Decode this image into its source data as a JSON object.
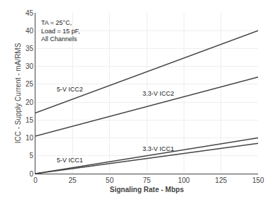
{
  "chart_data": {
    "type": "line",
    "xlabel": "Signaling Rate - Mbps",
    "ylabel": "ICC - Supply Current - mA/RMS",
    "annotation": "TA = 25°C,\nLoad = 15 pF,\nAll Channels",
    "x": [
      0,
      150
    ],
    "series": [
      {
        "name": "5-V ICC2",
        "color": "#444444",
        "values": [
          17.0,
          40.0
        ]
      },
      {
        "name": "3.3-V ICC2",
        "color": "#444444",
        "values": [
          10.5,
          27.0
        ]
      },
      {
        "name": "5-V ICC1",
        "color": "#444444",
        "values": [
          0.0,
          10.0
        ]
      },
      {
        "name": "3.3-V ICC1",
        "color": "#444444",
        "values": [
          0.0,
          8.5
        ]
      }
    ],
    "xlim": [
      0,
      150
    ],
    "ylim": [
      0,
      45
    ],
    "xticks": [
      0,
      25,
      50,
      75,
      100,
      125,
      150
    ],
    "yticks": [
      0,
      5,
      10,
      15,
      20,
      25,
      30,
      35,
      40,
      45
    ],
    "grid": true
  }
}
